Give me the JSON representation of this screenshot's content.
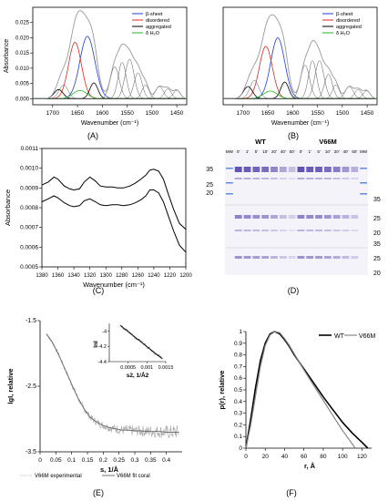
{
  "panels": {
    "A": {
      "label": "(A)"
    },
    "B": {
      "label": "(B)"
    },
    "C": {
      "label": "(C)"
    },
    "D": {
      "label": "(D)"
    },
    "E": {
      "label": "(E)"
    },
    "F": {
      "label": "(F)"
    }
  },
  "colors": {
    "beta": "#1f3fd6",
    "disordered": "#e0291f",
    "aggregated": "#000000",
    "water": "#1fb81f",
    "gel_band": "#5b4ab0"
  },
  "chart_data": [
    {
      "id": "A",
      "type": "line",
      "xlabel": "Wavenumber (cm⁻¹)",
      "ylabel": "Absorbance",
      "xlim": [
        1740,
        1430
      ],
      "ylim": [
        -0.002,
        0.03
      ],
      "xticks": [
        1700,
        1650,
        1600,
        1550,
        1500,
        1450
      ],
      "yticks": [
        0.0,
        0.005,
        0.01,
        0.015,
        0.02,
        0.025
      ],
      "ytick_labels": [
        "0.000",
        "0.005",
        "0.010",
        "0.015",
        "0.020",
        "0.025"
      ],
      "legend": [
        "β-sheet",
        "disordered",
        "aggregated",
        "δ H₂O"
      ],
      "legend_position": "top-right",
      "components": [
        {
          "series": "β-sheet",
          "center": 1630,
          "height": 0.0205,
          "width": 15
        },
        {
          "series": "disordered",
          "center": 1655,
          "height": 0.0185,
          "width": 13
        },
        {
          "series": "aggregated",
          "center": 1617,
          "height": 0.0052,
          "width": 8
        },
        {
          "series": "aggregated",
          "center": 1688,
          "height": 0.003,
          "width": 9
        },
        {
          "series": "water",
          "center": 1645,
          "height": 0.0027,
          "width": 14
        },
        {
          "series": "other",
          "center": 1678,
          "height": 0.0045,
          "width": 9
        },
        {
          "series": "other",
          "center": 1575,
          "height": 0.0105,
          "width": 9
        },
        {
          "series": "other",
          "center": 1560,
          "height": 0.012,
          "width": 8
        },
        {
          "series": "other",
          "center": 1545,
          "height": 0.013,
          "width": 9
        },
        {
          "series": "other",
          "center": 1528,
          "height": 0.0085,
          "width": 8
        },
        {
          "series": "other",
          "center": 1513,
          "height": 0.0045,
          "width": 7
        },
        {
          "series": "other",
          "center": 1485,
          "height": 0.004,
          "width": 8
        },
        {
          "series": "other",
          "center": 1468,
          "height": 0.0032,
          "width": 7
        },
        {
          "series": "other",
          "center": 1450,
          "height": 0.0028,
          "width": 7
        }
      ]
    },
    {
      "id": "B",
      "type": "line",
      "xlabel": "Wavenumber (cm⁻¹)",
      "ylabel": "",
      "xlim": [
        1740,
        1430
      ],
      "ylim": [
        -0.002,
        0.03
      ],
      "xticks": [
        1700,
        1650,
        1600,
        1550,
        1500,
        1450
      ],
      "legend": [
        "β-sheet",
        "disordered",
        "aggregated",
        "δ H₂O"
      ],
      "legend_position": "top-right",
      "components": [
        {
          "series": "β-sheet",
          "center": 1630,
          "height": 0.02,
          "width": 14
        },
        {
          "series": "disordered",
          "center": 1654,
          "height": 0.0172,
          "width": 13
        },
        {
          "series": "aggregated",
          "center": 1616,
          "height": 0.0055,
          "width": 8
        },
        {
          "series": "aggregated",
          "center": 1690,
          "height": 0.004,
          "width": 9
        },
        {
          "series": "water",
          "center": 1645,
          "height": 0.0025,
          "width": 14
        },
        {
          "series": "other",
          "center": 1677,
          "height": 0.006,
          "width": 9
        },
        {
          "series": "other",
          "center": 1575,
          "height": 0.011,
          "width": 9
        },
        {
          "series": "other",
          "center": 1560,
          "height": 0.0125,
          "width": 8
        },
        {
          "series": "other",
          "center": 1546,
          "height": 0.0125,
          "width": 9
        },
        {
          "series": "other",
          "center": 1528,
          "height": 0.008,
          "width": 8
        },
        {
          "series": "other",
          "center": 1513,
          "height": 0.0045,
          "width": 7
        },
        {
          "series": "other",
          "center": 1486,
          "height": 0.004,
          "width": 8
        },
        {
          "series": "other",
          "center": 1468,
          "height": 0.003,
          "width": 7
        },
        {
          "series": "other",
          "center": 1451,
          "height": 0.0026,
          "width": 7
        }
      ]
    },
    {
      "id": "C",
      "type": "line",
      "xlabel": "Wavenumber (cm⁻¹)",
      "ylabel": "Absorbance",
      "xlim": [
        1380,
        1200
      ],
      "ylim": [
        0.0005,
        0.0011
      ],
      "xticks": [
        1380,
        1360,
        1340,
        1320,
        1300,
        1280,
        1260,
        1240,
        1220,
        1200
      ],
      "yticks": [
        0.0005,
        0.0006,
        0.0007,
        0.0008,
        0.0009,
        0.001,
        0.0011
      ],
      "ytick_labels": [
        "0.0005",
        "0.0006",
        "0.0007",
        "0.0008",
        "0.0009",
        "0.0010",
        "0.0011"
      ],
      "series": [
        {
          "x": [
            1380,
            1372,
            1365,
            1360,
            1352,
            1345,
            1340,
            1333,
            1327,
            1320,
            1313,
            1307,
            1300,
            1292,
            1285,
            1278,
            1270,
            1263,
            1256,
            1250,
            1245,
            1240,
            1234,
            1228,
            1222,
            1215,
            1208,
            1200
          ],
          "values": [
            0.000915,
            0.00093,
            0.000955,
            0.000945,
            0.00091,
            0.000895,
            0.00089,
            0.000895,
            0.00093,
            0.000955,
            0.000935,
            0.00091,
            0.000905,
            0.000905,
            0.0009,
            0.0009,
            0.00091,
            0.000925,
            0.000945,
            0.000965,
            0.00099,
            0.000995,
            0.000985,
            0.000945,
            0.00087,
            0.00079,
            0.00072,
            0.00069
          ]
        },
        {
          "x": [
            1380,
            1372,
            1365,
            1360,
            1352,
            1345,
            1340,
            1333,
            1327,
            1320,
            1313,
            1307,
            1300,
            1292,
            1285,
            1278,
            1270,
            1263,
            1256,
            1250,
            1245,
            1240,
            1234,
            1228,
            1222,
            1215,
            1208,
            1200
          ],
          "values": [
            0.00083,
            0.000845,
            0.00086,
            0.00085,
            0.000825,
            0.00081,
            0.000805,
            0.00081,
            0.000835,
            0.000845,
            0.00083,
            0.000815,
            0.00081,
            0.000815,
            0.000815,
            0.00081,
            0.000815,
            0.000825,
            0.00084,
            0.00086,
            0.00089,
            0.00089,
            0.000875,
            0.00083,
            0.00076,
            0.00068,
            0.00061,
            0.000575
          ]
        }
      ]
    },
    {
      "id": "D",
      "type": "table",
      "group_labels": [
        "WT",
        "V66M"
      ],
      "lane_labels": [
        "MW",
        "0'",
        "1'",
        "5'",
        "10'",
        "20'",
        "40'",
        "60'",
        "0'",
        "1'",
        "5'",
        "10'",
        "20'",
        "40'",
        "60'",
        "MW"
      ],
      "mw_left": [
        "35",
        "25",
        "20"
      ],
      "mw_right": [
        "35",
        "25",
        "20",
        "35",
        "25",
        "20"
      ]
    },
    {
      "id": "E",
      "type": "scatter",
      "xlabel": "s, 1/Å",
      "ylabel": "lgI, relative",
      "xlim": [
        0,
        0.45
      ],
      "ylim": [
        -3.5,
        -1.5
      ],
      "xticks": [
        0,
        0.05,
        0.1,
        0.15,
        0.2,
        0.25,
        0.3,
        0.35,
        0.4
      ],
      "xtick_labels": [
        "0",
        "0.05",
        "0.1",
        "0.15",
        "0.2",
        "0.25",
        "0.3",
        "0.35",
        "0.4"
      ],
      "yticks": [
        -1.5,
        -2.5,
        -3.5
      ],
      "ytick_labels": [
        "-1.5",
        "-2.5",
        "-3.5"
      ],
      "legend": [
        "V66M experimental",
        "V66M fit coral"
      ],
      "legend_position": "bottom",
      "fit_x": [
        0.02,
        0.04,
        0.06,
        0.08,
        0.1,
        0.12,
        0.14,
        0.16,
        0.18,
        0.2,
        0.22,
        0.24,
        0.26,
        0.28,
        0.3,
        0.32,
        0.34,
        0.36,
        0.38,
        0.4,
        0.42,
        0.44
      ],
      "fit_y": [
        -1.7,
        -1.84,
        -2.03,
        -2.25,
        -2.47,
        -2.68,
        -2.85,
        -2.98,
        -3.05,
        -3.1,
        -3.13,
        -3.15,
        -3.17,
        -3.17,
        -3.18,
        -3.18,
        -3.19,
        -3.19,
        -3.19,
        -3.2,
        -3.2,
        -3.2
      ],
      "inset": {
        "xlabel": "s2, 1/Å2",
        "ylabel": "lnI",
        "xlim": [
          0,
          0.0015
        ],
        "ylim": [
          -4.4,
          -3.9
        ],
        "xticks": [
          0.0005,
          0.001,
          0.0015
        ],
        "xtick_labels": [
          "0.0005",
          "0.001",
          "0.0015"
        ],
        "yticks": [
          -4,
          -4.2,
          -4.4
        ],
        "ytick_labels": [
          "-4",
          "-4.2",
          "-4.4"
        ],
        "line_x": [
          0.0003,
          0.0014
        ],
        "line_y": [
          -3.93,
          -4.36
        ]
      }
    },
    {
      "id": "F",
      "type": "line",
      "xlabel": "r, Å",
      "ylabel": "p(r), relative",
      "xlim": [
        0,
        130
      ],
      "ylim": [
        0,
        1
      ],
      "xticks": [
        0,
        20,
        40,
        60,
        80,
        100,
        120
      ],
      "xtick_labels": [
        "0",
        "20",
        "40",
        "60",
        "80",
        "100",
        "120"
      ],
      "yticks": [
        0,
        0.1,
        0.2,
        0.3,
        0.4,
        0.5,
        0.6,
        0.7,
        0.8,
        0.9,
        1
      ],
      "ytick_labels": [
        "0",
        "0.1",
        "0.2",
        "0.3",
        "0.4",
        "0.5",
        "0.6",
        "0.7",
        "0.8",
        "0.9",
        "1"
      ],
      "legend": [
        "WT",
        "V66M"
      ],
      "legend_position": "top-right",
      "series": [
        {
          "name": "WT",
          "x": [
            0,
            5,
            10,
            15,
            20,
            25,
            30,
            35,
            40,
            45,
            50,
            60,
            70,
            80,
            90,
            100,
            110,
            120,
            126
          ],
          "values": [
            0,
            0.25,
            0.52,
            0.75,
            0.9,
            0.98,
            1.0,
            0.98,
            0.93,
            0.87,
            0.8,
            0.68,
            0.56,
            0.44,
            0.33,
            0.22,
            0.13,
            0.05,
            0
          ]
        },
        {
          "name": "V66M",
          "x": [
            0,
            5,
            10,
            15,
            20,
            25,
            30,
            35,
            40,
            45,
            50,
            60,
            70,
            80,
            90,
            100,
            108,
            113
          ],
          "values": [
            0,
            0.2,
            0.45,
            0.7,
            0.88,
            0.97,
            1.0,
            0.99,
            0.94,
            0.88,
            0.81,
            0.67,
            0.54,
            0.41,
            0.28,
            0.15,
            0.06,
            0
          ]
        }
      ]
    }
  ]
}
